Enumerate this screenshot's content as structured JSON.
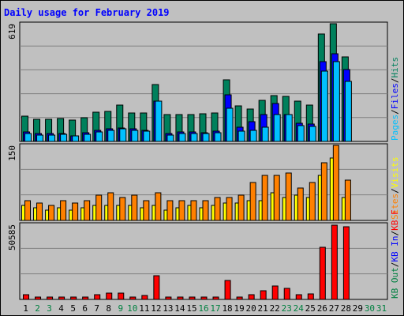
{
  "chart_data": {
    "type": "bar",
    "title": "Daily usage for February 2019",
    "colors": {
      "background": "#c0c0c0",
      "title": "#0000ff",
      "hits": "#00805c",
      "files": "#0000ff",
      "pages": "#00c0ff",
      "visits": "#ffff00",
      "sites": "#ff8000",
      "kb_out": "#008040",
      "kb_in": "#0000ff",
      "kb_f": "#ff0000",
      "weekend_label": "#008040",
      "grid": "#808080"
    },
    "categories": [
      "1",
      "2",
      "3",
      "4",
      "5",
      "6",
      "7",
      "8",
      "9",
      "10",
      "11",
      "12",
      "13",
      "14",
      "15",
      "16",
      "17",
      "18",
      "19",
      "20",
      "21",
      "22",
      "23",
      "24",
      "25",
      "26",
      "27",
      "28",
      "29",
      "30",
      "31"
    ],
    "weekend_days": [
      "2",
      "3",
      "9",
      "10",
      "16",
      "17",
      "23",
      "24",
      "30",
      "31"
    ],
    "panels": [
      {
        "id": "hits-files-pages",
        "ymax_label": "619",
        "ymax": 619,
        "legend": [
          {
            "text": "Hits",
            "color": "#00805c"
          },
          {
            "text": "Files",
            "color": "#0000ff"
          },
          {
            "text": "Pages",
            "color": "#00c0ff"
          }
        ],
        "series": [
          {
            "name": "Hits",
            "values": [
              135,
              118,
              115,
              120,
              113,
              123,
              155,
              158,
              190,
              150,
              150,
              300,
              142,
              140,
              140,
              145,
              150,
              325,
              185,
              170,
              215,
              240,
              235,
              210,
              190,
              565,
              620,
              445,
              0,
              0,
              0
            ]
          },
          {
            "name": "Files",
            "values": [
              50,
              40,
              40,
              40,
              30,
              45,
              58,
              65,
              70,
              65,
              60,
              210,
              40,
              48,
              50,
              46,
              52,
              245,
              75,
              105,
              140,
              200,
              140,
              95,
              90,
              420,
              460,
              380,
              0,
              0,
              0
            ]
          },
          {
            "name": "Pages",
            "values": [
              43,
              32,
              35,
              37,
              28,
              38,
              50,
              57,
              65,
              57,
              53,
              210,
              35,
              42,
              42,
              40,
              45,
              175,
              55,
              60,
              75,
              140,
              140,
              85,
              80,
              370,
              420,
              315,
              0,
              0,
              0
            ]
          }
        ]
      },
      {
        "id": "visits-sites",
        "ymax_label": "150",
        "ymax": 150,
        "legend": [
          {
            "text": "Visits",
            "color": "#ffff00"
          },
          {
            "text": "Sites",
            "color": "#ff8000"
          }
        ],
        "series": [
          {
            "name": "Visits",
            "values": [
              30,
              25,
              20,
              25,
              20,
              25,
              30,
              30,
              30,
              30,
              25,
              30,
              20,
              25,
              30,
              25,
              30,
              35,
              35,
              40,
              40,
              55,
              45,
              50,
              45,
              90,
              125,
              45,
              0,
              0,
              0
            ]
          },
          {
            "name": "Sites",
            "values": [
              40,
              35,
              30,
              40,
              35,
              40,
              50,
              55,
              45,
              50,
              40,
              55,
              40,
              40,
              40,
              40,
              45,
              45,
              50,
              75,
              90,
              90,
              95,
              65,
              75,
              115,
              150,
              80,
              0,
              0,
              0
            ]
          }
        ]
      },
      {
        "id": "kb",
        "ymax_label": "50585",
        "ymax": 50585,
        "legend": [
          {
            "text": "KB F",
            "color": "#ff0000"
          },
          {
            "text": "KB In",
            "color": "#0000ff"
          },
          {
            "text": "KB Out",
            "color": "#008040"
          }
        ],
        "series": [
          {
            "name": "KB F",
            "values": [
              3200,
              1800,
              1800,
              1800,
              1800,
              1800,
              3000,
              4200,
              4200,
              1800,
              2400,
              16000,
              1800,
              1800,
              1800,
              1800,
              1800,
              13000,
              1800,
              3000,
              5600,
              8900,
              7600,
              3200,
              3500,
              35000,
              49800,
              48800,
              0,
              0,
              0
            ]
          }
        ]
      }
    ]
  }
}
